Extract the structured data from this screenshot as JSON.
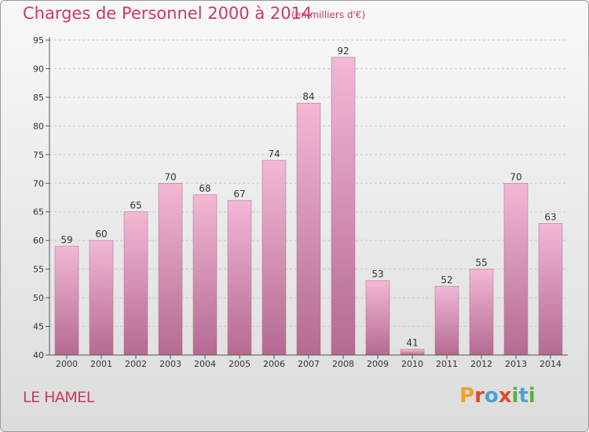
{
  "title": "Charges de Personnel 2000 à 2014",
  "subtitle": "(en milliers d'€)",
  "commune": "LE HAMEL",
  "brand": {
    "text": "Proxiti",
    "colors": [
      "#f0a030",
      "#e04a2a",
      "#4aa0d8",
      "#e04a2a",
      "#5ab040",
      "#4aa0d8",
      "#5ab040"
    ]
  },
  "colors": {
    "bar_light": "#f2b8d4",
    "bar_dark": "#b56a92",
    "grid": "#c8c8c8",
    "title": "#cc3a5c"
  },
  "chart_data": {
    "type": "bar",
    "categories": [
      "2000",
      "2001",
      "2002",
      "2003",
      "2004",
      "2005",
      "2006",
      "2007",
      "2008",
      "2009",
      "2010",
      "2011",
      "2012",
      "2013",
      "2014"
    ],
    "values": [
      59,
      60,
      65,
      70,
      68,
      67,
      74,
      84,
      92,
      53,
      41,
      52,
      55,
      70,
      63
    ],
    "ylim": [
      40,
      95
    ],
    "yticks": [
      40,
      45,
      50,
      55,
      60,
      65,
      70,
      75,
      80,
      85,
      90,
      95
    ],
    "grid": "horizontal dashed",
    "title": "Charges de Personnel 2000 à 2014",
    "xlabel": "",
    "ylabel": ""
  }
}
